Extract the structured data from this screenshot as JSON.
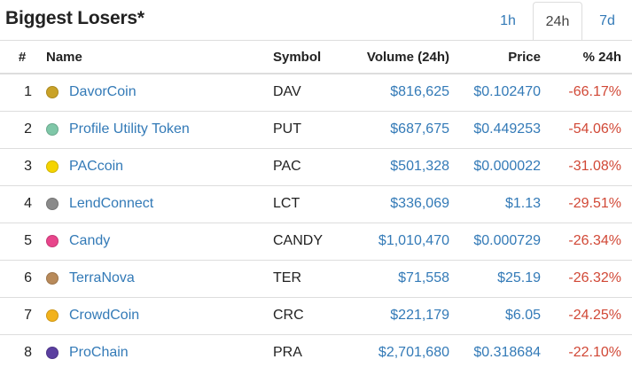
{
  "header": {
    "title": "Biggest Losers*",
    "tabs": [
      {
        "label": "1h",
        "active": false
      },
      {
        "label": "24h",
        "active": true
      },
      {
        "label": "7d",
        "active": false
      }
    ]
  },
  "table": {
    "columns": {
      "num": "#",
      "name": "Name",
      "symbol": "Symbol",
      "volume": "Volume (24h)",
      "price": "Price",
      "change": "% 24h"
    },
    "rows": [
      {
        "rank": "1",
        "name": "DavorCoin",
        "symbol": "DAV",
        "volume": "$816,625",
        "price": "$0.102470",
        "change": "-66.17%",
        "icon": "davorcoin-icon",
        "icon_color": "#c9a227"
      },
      {
        "rank": "2",
        "name": "Profile Utility Token",
        "symbol": "PUT",
        "volume": "$687,675",
        "price": "$0.449253",
        "change": "-54.06%",
        "icon": "profile-utility-token-icon",
        "icon_color": "#7fc7a8"
      },
      {
        "rank": "3",
        "name": "PACcoin",
        "symbol": "PAC",
        "volume": "$501,328",
        "price": "$0.000022",
        "change": "-31.08%",
        "icon": "paccoin-icon",
        "icon_color": "#f5d400"
      },
      {
        "rank": "4",
        "name": "LendConnect",
        "symbol": "LCT",
        "volume": "$336,069",
        "price": "$1.13",
        "change": "-29.51%",
        "icon": "lendconnect-icon",
        "icon_color": "#8a8a8a"
      },
      {
        "rank": "5",
        "name": "Candy",
        "symbol": "CANDY",
        "volume": "$1,010,470",
        "price": "$0.000729",
        "change": "-26.34%",
        "icon": "candy-icon",
        "icon_color": "#e8458b"
      },
      {
        "rank": "6",
        "name": "TerraNova",
        "symbol": "TER",
        "volume": "$71,558",
        "price": "$25.19",
        "change": "-26.32%",
        "icon": "terranova-icon",
        "icon_color": "#b88a5a"
      },
      {
        "rank": "7",
        "name": "CrowdCoin",
        "symbol": "CRC",
        "volume": "$221,179",
        "price": "$6.05",
        "change": "-24.25%",
        "icon": "crowdcoin-icon",
        "icon_color": "#f2b21c"
      },
      {
        "rank": "8",
        "name": "ProChain",
        "symbol": "PRA",
        "volume": "$2,701,680",
        "price": "$0.318684",
        "change": "-22.10%",
        "icon": "prochain-icon",
        "icon_color": "#5b3fa0"
      }
    ]
  },
  "colors": {
    "link": "#337ab7",
    "negative": "#d14836",
    "border": "#dddddd"
  }
}
